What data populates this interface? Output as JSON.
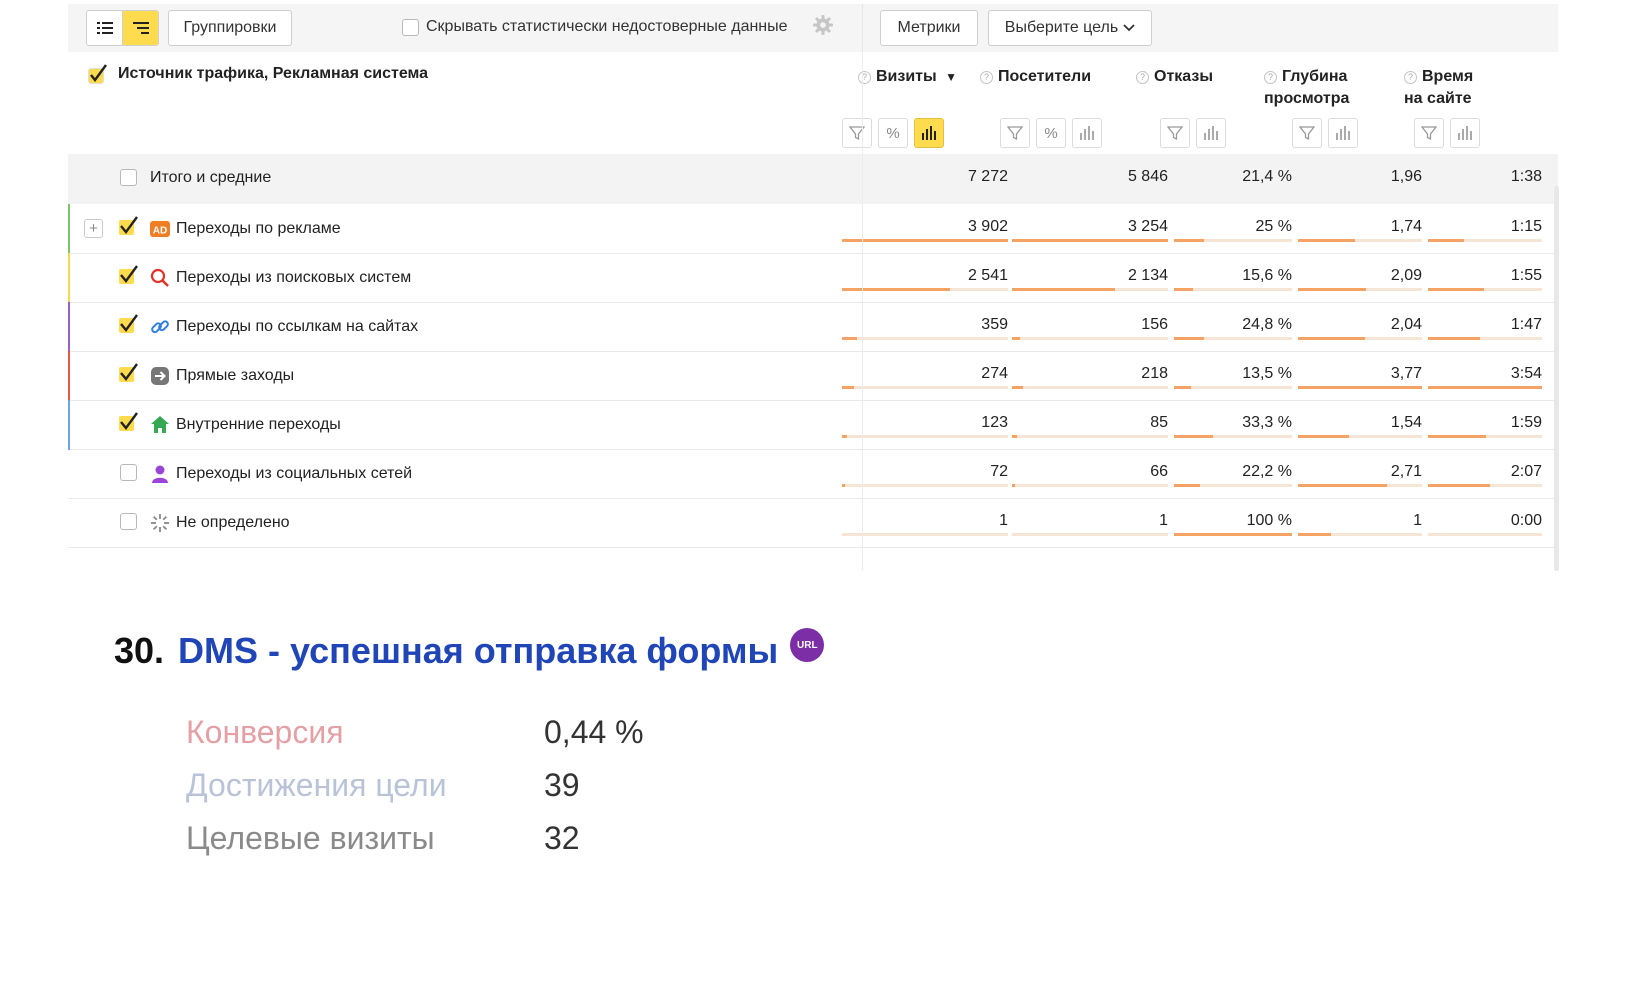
{
  "toolbar": {
    "groupings_label": "Группировки",
    "hide_unreliable_label": "Скрывать статистически недостоверные данные",
    "metrics_label": "Метрики",
    "goal_select_label": "Выберите цель"
  },
  "table": {
    "dimension_header": "Источник трафика, Рекламная система",
    "columns": [
      {
        "key": "visits",
        "title": "Визиты",
        "sort": "▼"
      },
      {
        "key": "visitors",
        "title": "Посетители"
      },
      {
        "key": "bounces",
        "title": "Отказы"
      },
      {
        "key": "depth",
        "title_line1": "Глубина",
        "title_line2": "просмотра"
      },
      {
        "key": "time",
        "title_line1": "Время",
        "title_line2": "на сайте"
      }
    ],
    "total": {
      "label": "Итого и средние",
      "visits": "7 272",
      "visitors": "5 846",
      "bounces": "21,4 %",
      "depth": "1,96",
      "time": "1:38"
    },
    "rows": [
      {
        "label": "Переходы по рекламе",
        "icon": "ad-icon",
        "checked": true,
        "expandable": true,
        "stripe": "#7cc36b",
        "visits": "3 902",
        "visitors": "3 254",
        "bounces": "25 %",
        "depth": "1,74",
        "time": "1:15",
        "bar": {
          "visits": 1.0,
          "visitors": 1.0,
          "bounces": 0.25,
          "depth": 0.46,
          "time": 0.32
        }
      },
      {
        "label": "Переходы из поисковых систем",
        "icon": "search-icon",
        "checked": true,
        "stripe": "#f2d955",
        "visits": "2 541",
        "visitors": "2 134",
        "bounces": "15,6 %",
        "depth": "2,09",
        "time": "1:55",
        "bar": {
          "visits": 0.65,
          "visitors": 0.66,
          "bounces": 0.16,
          "depth": 0.55,
          "time": 0.49
        }
      },
      {
        "label": "Переходы по ссылкам на сайтах",
        "icon": "link-icon",
        "checked": true,
        "stripe": "#9b5fc7",
        "visits": "359",
        "visitors": "156",
        "bounces": "24,8 %",
        "depth": "2,04",
        "time": "1:47",
        "bar": {
          "visits": 0.09,
          "visitors": 0.05,
          "bounces": 0.25,
          "depth": 0.54,
          "time": 0.46
        }
      },
      {
        "label": "Прямые заходы",
        "icon": "direct-icon",
        "checked": true,
        "stripe": "#e35a4b",
        "visits": "274",
        "visitors": "218",
        "bounces": "13,5 %",
        "depth": "3,77",
        "time": "3:54",
        "bar": {
          "visits": 0.07,
          "visitors": 0.07,
          "bounces": 0.14,
          "depth": 1.0,
          "time": 1.0
        }
      },
      {
        "label": "Внутренние переходы",
        "icon": "home-icon",
        "checked": true,
        "stripe": "#6aa5e8",
        "visits": "123",
        "visitors": "85",
        "bounces": "33,3 %",
        "depth": "1,54",
        "time": "1:59",
        "bar": {
          "visits": 0.03,
          "visitors": 0.03,
          "bounces": 0.33,
          "depth": 0.41,
          "time": 0.51
        }
      },
      {
        "label": "Переходы из социальных сетей",
        "icon": "social-icon",
        "checked": false,
        "stripe": "",
        "visits": "72",
        "visitors": "66",
        "bounces": "22,2 %",
        "depth": "2,71",
        "time": "2:07",
        "bar": {
          "visits": 0.02,
          "visitors": 0.02,
          "bounces": 0.22,
          "depth": 0.72,
          "time": 0.54
        }
      },
      {
        "label": "Не определено",
        "icon": "undefined-icon",
        "checked": false,
        "stripe": "",
        "visits": "1",
        "visitors": "1",
        "bounces": "100 %",
        "depth": "1",
        "time": "0:00",
        "bar": {
          "visits": 0.0,
          "visitors": 0.0,
          "bounces": 1.0,
          "depth": 0.27,
          "time": 0.0
        }
      }
    ]
  },
  "goal": {
    "number": "30.",
    "name": "DMS - успешная отправка формы",
    "badge": "URL",
    "stats": [
      {
        "label": "Конверсия",
        "value": "0,44 %",
        "color": "#e4a0a4"
      },
      {
        "label": "Достижения цели",
        "value": "39",
        "color": "#b9c3d8"
      },
      {
        "label": "Целевые визиты",
        "value": "32",
        "color": "#8a8a8a"
      }
    ]
  }
}
